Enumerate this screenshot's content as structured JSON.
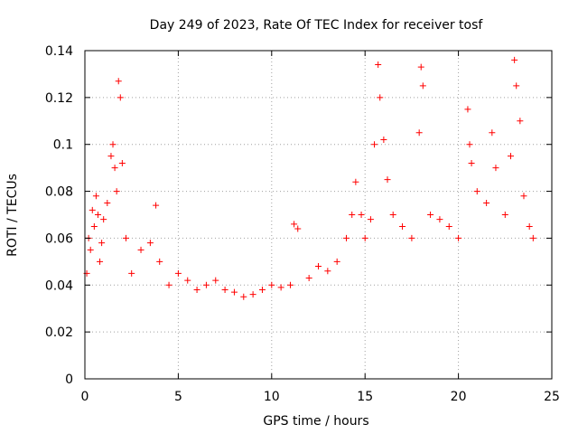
{
  "chart_data": {
    "type": "scatter",
    "title": "Day 249 of 2023, Rate Of TEC Index for receiver tosf",
    "xlabel": "GPS time / hours",
    "ylabel": "ROTI / TECUs",
    "xlim": [
      0,
      25
    ],
    "ylim": [
      0,
      0.14
    ],
    "xticks": [
      0,
      5,
      10,
      15,
      20,
      25
    ],
    "xtick_labels": [
      "0",
      "5",
      "10",
      "15",
      "20",
      "25"
    ],
    "yticks": [
      0,
      0.02,
      0.04,
      0.06,
      0.08,
      0.1,
      0.12,
      0.14
    ],
    "ytick_labels": [
      "0",
      "0.02",
      "0.04",
      "0.06",
      "0.08",
      "0.1",
      "0.12",
      "0.14"
    ],
    "grid": true,
    "marker": "+",
    "color": "#ff0000",
    "series": [
      {
        "name": "ROTI",
        "x": [
          0.1,
          0.2,
          0.3,
          0.4,
          0.5,
          0.6,
          0.7,
          0.8,
          0.9,
          1.0,
          1.2,
          1.4,
          1.5,
          1.6,
          1.7,
          1.8,
          1.9,
          2.0,
          2.2,
          2.5,
          3.0,
          3.5,
          3.8,
          4.0,
          4.5,
          5.0,
          5.5,
          6.0,
          6.5,
          7.0,
          7.5,
          8.0,
          8.5,
          9.0,
          9.5,
          10.0,
          10.5,
          11.0,
          11.2,
          11.4,
          12.0,
          12.5,
          13.0,
          13.5,
          14.0,
          14.3,
          14.5,
          14.8,
          15.0,
          15.3,
          15.5,
          15.7,
          15.8,
          16.0,
          16.2,
          16.5,
          17.0,
          17.5,
          17.9,
          18.0,
          18.1,
          18.5,
          19.0,
          19.5,
          20.0,
          20.5,
          20.6,
          20.7,
          21.0,
          21.5,
          21.8,
          22.0,
          22.5,
          22.8,
          23.0,
          23.1,
          23.3,
          23.5,
          23.8,
          24.0
        ],
        "y": [
          0.045,
          0.06,
          0.055,
          0.072,
          0.065,
          0.078,
          0.07,
          0.05,
          0.058,
          0.068,
          0.075,
          0.095,
          0.1,
          0.09,
          0.08,
          0.127,
          0.12,
          0.092,
          0.06,
          0.045,
          0.055,
          0.058,
          0.074,
          0.05,
          0.04,
          0.045,
          0.042,
          0.038,
          0.04,
          0.042,
          0.038,
          0.037,
          0.035,
          0.036,
          0.038,
          0.04,
          0.039,
          0.04,
          0.066,
          0.064,
          0.043,
          0.048,
          0.046,
          0.05,
          0.06,
          0.07,
          0.084,
          0.07,
          0.06,
          0.068,
          0.1,
          0.134,
          0.12,
          0.102,
          0.085,
          0.07,
          0.065,
          0.06,
          0.105,
          0.133,
          0.125,
          0.07,
          0.068,
          0.065,
          0.06,
          0.115,
          0.1,
          0.092,
          0.08,
          0.075,
          0.105,
          0.09,
          0.07,
          0.095,
          0.136,
          0.125,
          0.11,
          0.078,
          0.065,
          0.06
        ]
      }
    ]
  }
}
